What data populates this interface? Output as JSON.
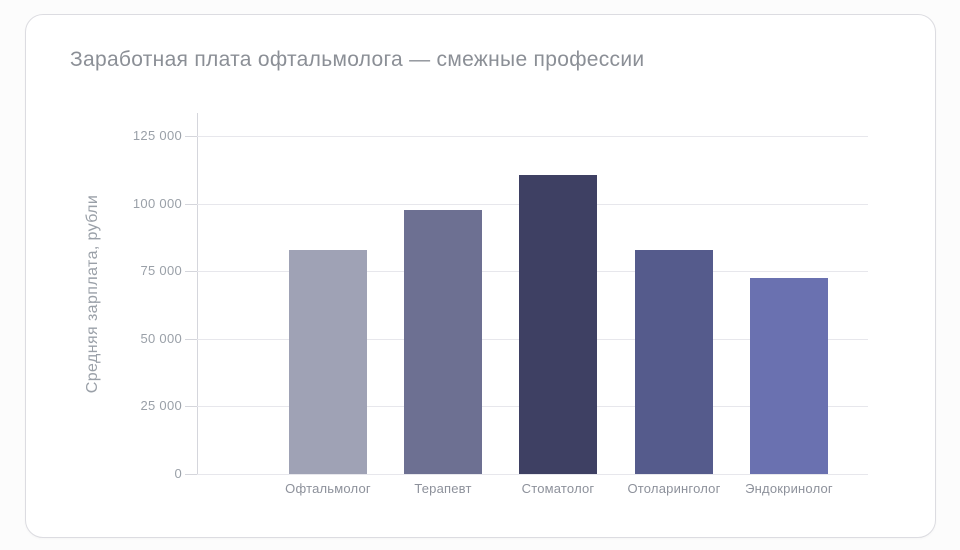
{
  "card": {
    "background": "#ffffff",
    "border_color": "#dcdce1"
  },
  "chart_data": {
    "type": "bar",
    "title": "Заработная плата офтальмолога — смежные профессии",
    "xlabel": "",
    "ylabel": "Средняя зарплата, рубли",
    "categories": [
      "Офтальмолог",
      "Терапевт",
      "Стоматолог",
      "Отоларинголог",
      "Эндокринолог"
    ],
    "values": [
      83000,
      97500,
      110500,
      83000,
      72500
    ],
    "bar_colors": [
      "#9fa2b5",
      "#6d7092",
      "#3e4063",
      "#555b8c",
      "#6a71b0"
    ],
    "ylim": [
      0,
      125000
    ],
    "ytick_step": 25000,
    "ytick_labels": [
      "0",
      "25 000",
      "50 000",
      "75 000",
      "100 000",
      "125 000"
    ],
    "grid": true,
    "legend": false,
    "text_colors": {
      "title": "#8b8f96",
      "axis_labels": "#9aa0a8",
      "category_labels": "#8d919b"
    },
    "line_colors": {
      "gridline": "#e7e7ec",
      "axis": "#d5d6dc"
    }
  }
}
